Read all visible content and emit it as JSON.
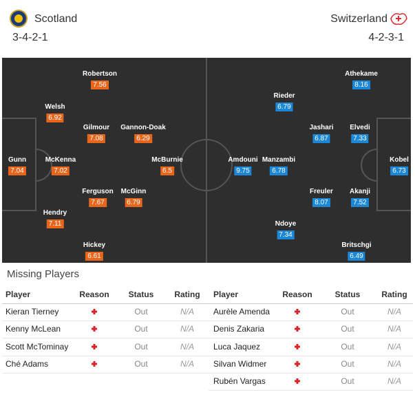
{
  "header": {
    "home": {
      "team": "Scotland",
      "formation": "3-4-2-1"
    },
    "away": {
      "team": "Switzerland",
      "formation": "4-2-3-1"
    }
  },
  "lineups": {
    "home": [
      {
        "name": "Robertson",
        "rating": 7.56
      },
      {
        "name": "Welsh",
        "rating": 6.92
      },
      {
        "name": "Gilmour",
        "rating": 7.08
      },
      {
        "name": "Gannon-Doak",
        "rating": 6.29
      },
      {
        "name": "Gunn",
        "rating": 7.04
      },
      {
        "name": "McKenna",
        "rating": 7.02
      },
      {
        "name": "McBurnie",
        "rating": 6.5
      },
      {
        "name": "Ferguson",
        "rating": 7.67
      },
      {
        "name": "McGinn",
        "rating": 6.79
      },
      {
        "name": "Hendry",
        "rating": 7.11
      },
      {
        "name": "Hickey",
        "rating": 6.61
      }
    ],
    "away": [
      {
        "name": "Athekame",
        "rating": 8.16
      },
      {
        "name": "Rieder",
        "rating": 6.79
      },
      {
        "name": "Jashari",
        "rating": 6.87
      },
      {
        "name": "Elvedi",
        "rating": 7.33
      },
      {
        "name": "Amdouni",
        "rating": 9.75
      },
      {
        "name": "Manzambi",
        "rating": 6.78
      },
      {
        "name": "Kobel",
        "rating": 6.73
      },
      {
        "name": "Freuler",
        "rating": 8.07
      },
      {
        "name": "Akanji",
        "rating": 7.52
      },
      {
        "name": "Ndoye",
        "rating": 7.34
      },
      {
        "name": "Britschgi",
        "rating": 6.49
      }
    ]
  },
  "missing": {
    "title": "Missing Players",
    "home": {
      "columns": [
        "Player",
        "Reason",
        "Status",
        "Rating"
      ],
      "rows": [
        {
          "player": "Kieran Tierney",
          "status": "Out",
          "rating": "N/A"
        },
        {
          "player": "Kenny McLean",
          "status": "Out",
          "rating": "N/A"
        },
        {
          "player": "Scott McTominay",
          "status": "Out",
          "rating": "N/A"
        },
        {
          "player": "Ché Adams",
          "status": "Out",
          "rating": "N/A"
        }
      ]
    },
    "away": {
      "columns": [
        "Player",
        "Reason",
        "Status",
        "Rating"
      ],
      "rows": [
        {
          "player": "Aurèle Amenda",
          "status": "Out",
          "rating": "N/A"
        },
        {
          "player": "Denis Zakaria",
          "status": "Out",
          "rating": "N/A"
        },
        {
          "player": "Luca Jaquez",
          "status": "Out",
          "rating": "N/A"
        },
        {
          "player": "Silvan Widmer",
          "status": "Out",
          "rating": "N/A"
        },
        {
          "player": "Rubén Vargas",
          "status": "Out",
          "rating": "N/A"
        }
      ]
    }
  }
}
